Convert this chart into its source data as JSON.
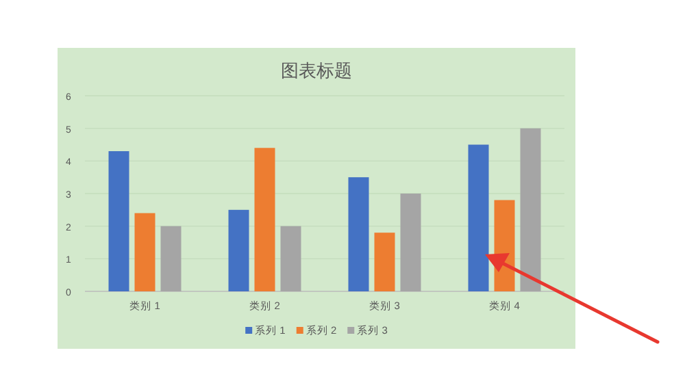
{
  "chart_data": {
    "type": "bar",
    "title": "图表标题",
    "categories": [
      "类别 1",
      "类别 2",
      "类别 3",
      "类别 4"
    ],
    "series": [
      {
        "name": "系列 1",
        "color": "#4472c4",
        "values": [
          4.3,
          2.5,
          3.5,
          4.5
        ]
      },
      {
        "name": "系列 2",
        "color": "#ed7d31",
        "values": [
          2.4,
          4.4,
          1.8,
          2.8
        ]
      },
      {
        "name": "系列 3",
        "color": "#a5a5a5",
        "values": [
          2,
          2,
          3,
          5
        ]
      }
    ],
    "ylim": [
      0,
      6
    ],
    "yticks": [
      0,
      1,
      2,
      3,
      4,
      5,
      6
    ],
    "grid": "y",
    "legend": "bottom"
  }
}
